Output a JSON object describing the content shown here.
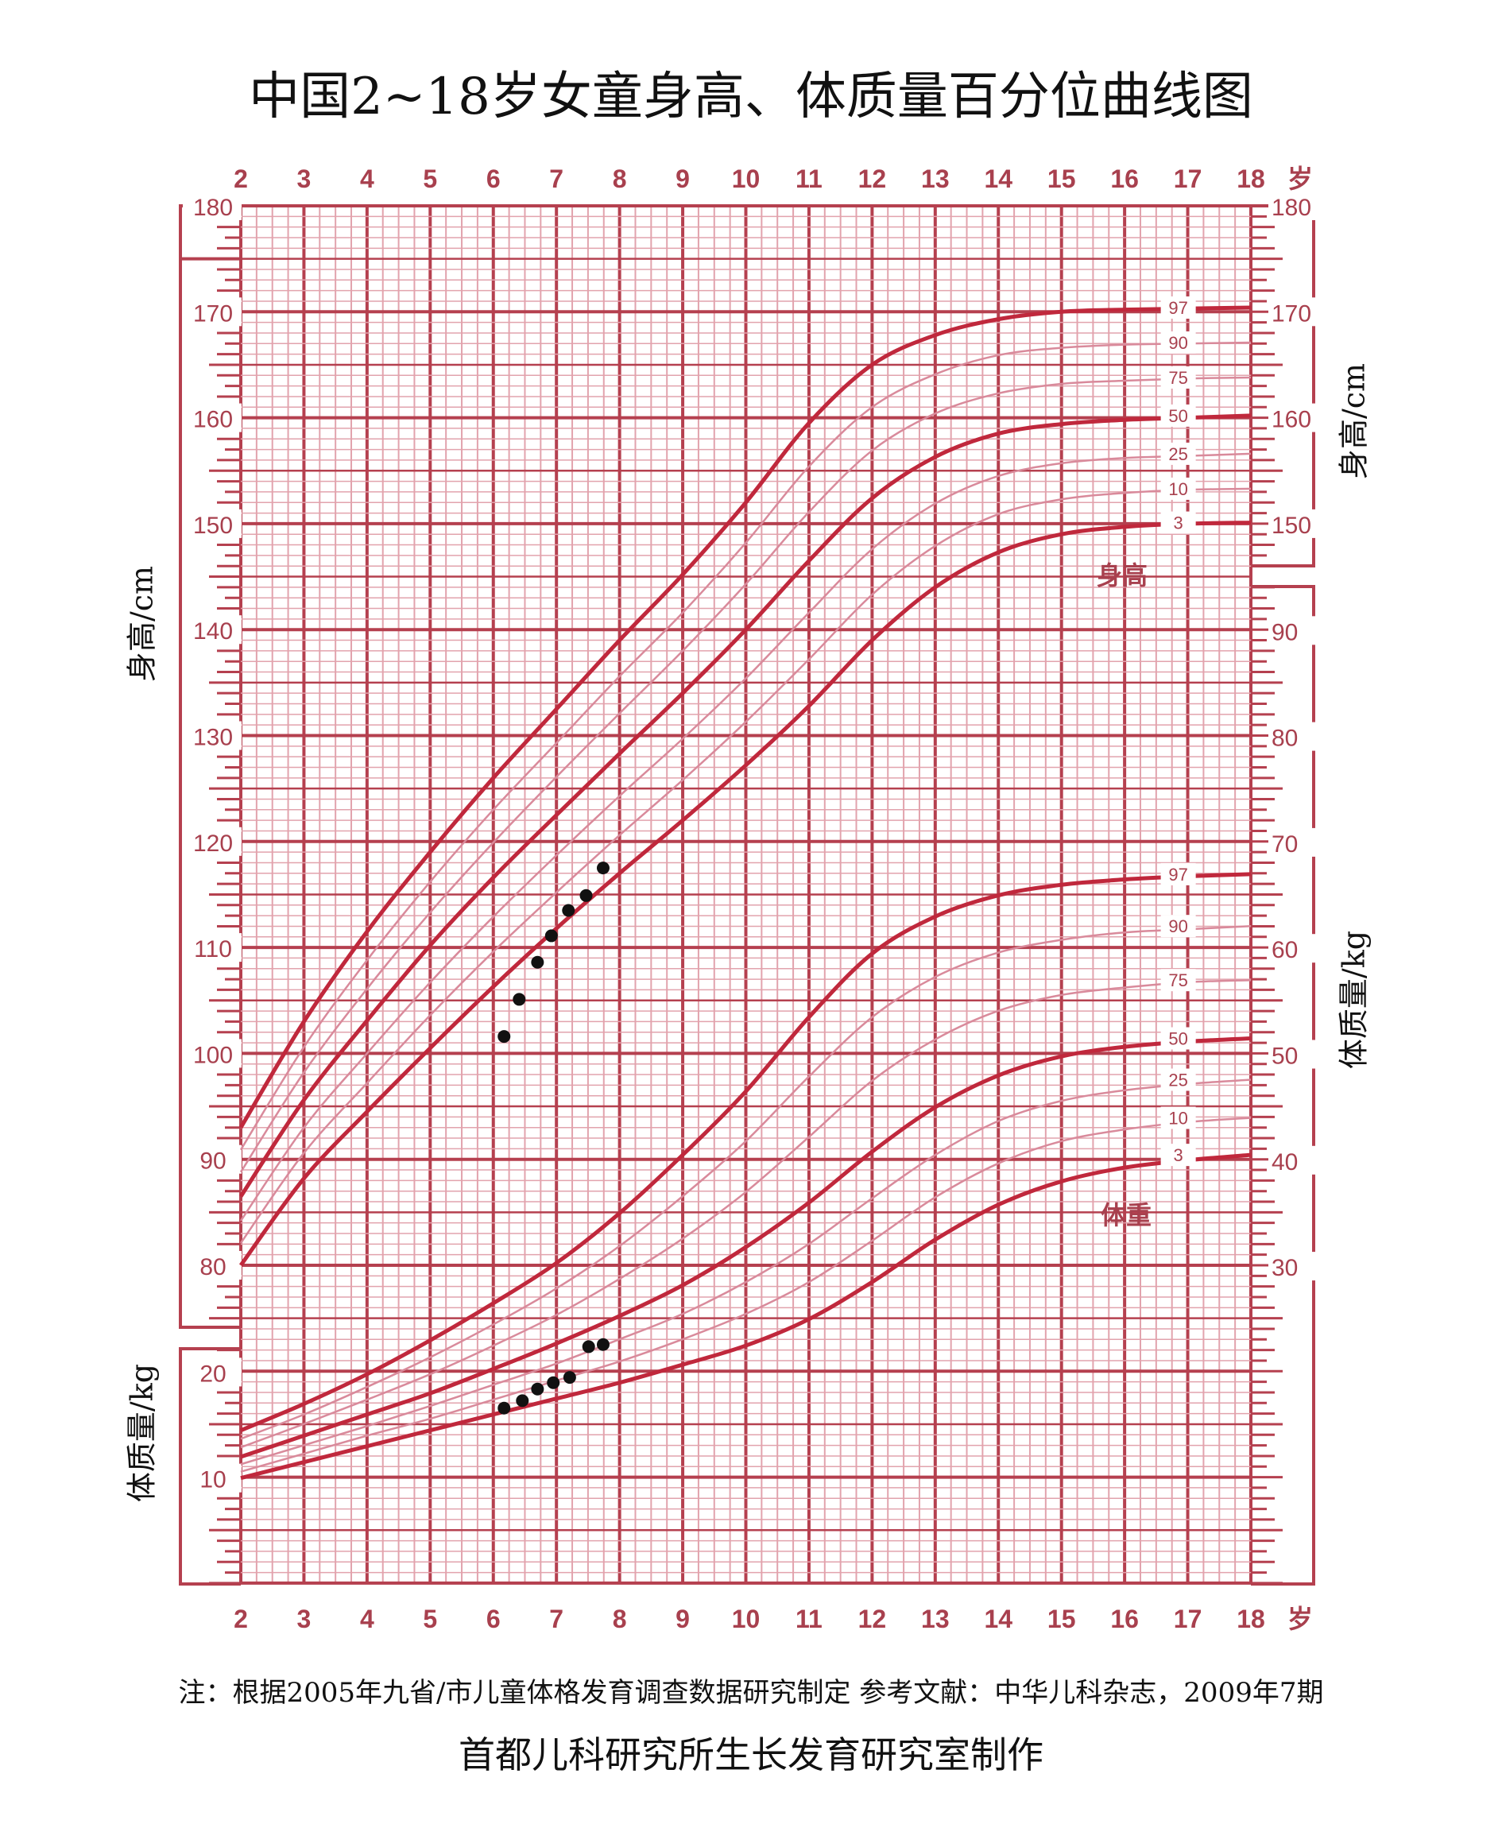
{
  "title": "中国2~18岁女童身高、体质量百分位曲线图",
  "footer_note": "注：根据2005年九省/市儿童体格发育调查数据研究制定  参考文献：中华儿科杂志，2009年7期",
  "footer_maker": "首都儿科研究所生长发育研究室制作",
  "axis_labels": {
    "height": "身高/cm",
    "weight": "体质量/kg",
    "age_unit": "岁"
  },
  "region_labels": {
    "height": "身高",
    "weight": "体重"
  },
  "colors": {
    "grid": "#b5404f",
    "minor": "#e2a3ad",
    "main_curve": "#c0283c",
    "other_curve": "#d98a9b",
    "points": "#111111"
  },
  "chart_data": {
    "type": "line",
    "title": "中国2~18岁女童身高、体质量百分位曲线图",
    "xlabel": "岁",
    "x": [
      2,
      3,
      4,
      5,
      6,
      7,
      8,
      9,
      10,
      11,
      12,
      13,
      14,
      15,
      16,
      17,
      18
    ],
    "xlim": [
      2,
      18
    ],
    "height_axis": {
      "label": "身高/cm",
      "left_ticks": [
        80,
        90,
        100,
        110,
        120,
        130,
        140,
        150,
        160,
        170,
        180
      ],
      "right_ticks": [
        150,
        160,
        170,
        180
      ],
      "ylim": [
        80,
        180
      ]
    },
    "weight_axis": {
      "label": "体质量/kg",
      "left_ticks": [
        10,
        20
      ],
      "right_ticks": [
        30,
        40,
        50,
        60,
        70,
        80,
        90
      ],
      "ylim": [
        0,
        90
      ]
    },
    "height_series": [
      {
        "name": "3",
        "values": [
          80,
          88.2,
          94.5,
          100.5,
          106.3,
          111.8,
          117,
          122,
          127.2,
          132.8,
          139,
          144,
          147.3,
          149,
          149.7,
          150,
          150.1
        ]
      },
      {
        "name": "10",
        "values": [
          82.1,
          90.6,
          97.2,
          103.6,
          109.6,
          115.2,
          120.6,
          125.8,
          131.3,
          137.2,
          143.3,
          147.9,
          150.9,
          152.3,
          152.9,
          153.2,
          153.3
        ]
      },
      {
        "name": "25",
        "values": [
          84.2,
          93.0,
          100.0,
          106.7,
          112.9,
          118.7,
          124.3,
          129.7,
          135.4,
          141.6,
          147.6,
          151.9,
          154.5,
          155.7,
          156.2,
          156.4,
          156.6
        ]
      },
      {
        "name": "50",
        "values": [
          86.5,
          95.6,
          103.1,
          110.2,
          116.6,
          122.5,
          128.3,
          134,
          140,
          146.5,
          152.4,
          156.3,
          158.5,
          159.4,
          159.8,
          160,
          160.2
        ]
      },
      {
        "name": "75",
        "values": [
          88.8,
          98.2,
          106.1,
          113.3,
          119.9,
          126.1,
          132.1,
          138.0,
          144.3,
          151.1,
          156.9,
          160.4,
          162.3,
          163.2,
          163.5,
          163.7,
          163.8
        ]
      },
      {
        "name": "90",
        "values": [
          90.9,
          100.6,
          108.8,
          116.2,
          123.0,
          129.3,
          135.6,
          141.6,
          148.2,
          155.4,
          161.0,
          164.1,
          165.9,
          166.6,
          166.9,
          167.0,
          167.1
        ]
      },
      {
        "name": "97",
        "values": [
          93,
          103,
          111.5,
          119,
          126,
          132.5,
          139,
          145.2,
          152,
          159.5,
          165,
          167.8,
          169.3,
          170,
          170.2,
          170.3,
          170.4
        ]
      }
    ],
    "weight_series": [
      {
        "name": "3",
        "values": [
          10,
          11.5,
          13,
          14.5,
          16,
          17.5,
          19,
          20.7,
          22.5,
          25,
          28.5,
          32.5,
          35.8,
          38,
          39.3,
          40,
          40.5
        ]
      },
      {
        "name": "10",
        "values": [
          10.6,
          12.3,
          14.0,
          15.6,
          17.4,
          19.2,
          21.0,
          23.1,
          25.5,
          28.5,
          32.4,
          36.5,
          39.7,
          41.8,
          42.9,
          43.6,
          44.0
        ]
      },
      {
        "name": "25",
        "values": [
          11.3,
          13.1,
          14.9,
          16.8,
          18.8,
          20.8,
          23.1,
          25.5,
          28.5,
          32.1,
          36.4,
          40.5,
          43.7,
          45.6,
          46.6,
          47.2,
          47.6
        ]
      },
      {
        "name": "50",
        "values": [
          12,
          14,
          16,
          18,
          20.3,
          22.7,
          25.3,
          28.2,
          31.8,
          36,
          40.8,
          45,
          48,
          49.8,
          50.7,
          51.2,
          51.5
        ]
      },
      {
        "name": "75",
        "values": [
          12.9,
          15.1,
          17.4,
          19.8,
          22.5,
          25.4,
          28.8,
          32.6,
          37.0,
          42.2,
          47.5,
          51.4,
          54.1,
          55.6,
          56.3,
          56.8,
          57.0
        ]
      },
      {
        "name": "90",
        "values": [
          13.7,
          16.0,
          18.6,
          21.4,
          24.5,
          27.9,
          31.9,
          36.6,
          41.8,
          47.9,
          53.5,
          57.3,
          59.6,
          60.8,
          61.5,
          61.8,
          62.1
        ]
      },
      {
        "name": "97",
        "values": [
          14.5,
          17,
          19.8,
          23,
          26.5,
          30.3,
          35,
          40.5,
          46.5,
          53.5,
          59.5,
          63,
          65,
          66,
          66.5,
          66.8,
          67
        ]
      }
    ],
    "height_points": [
      {
        "age": 6.17,
        "value": 101.6
      },
      {
        "age": 6.41,
        "value": 105.1
      },
      {
        "age": 6.7,
        "value": 108.6
      },
      {
        "age": 6.92,
        "value": 111.1
      },
      {
        "age": 7.19,
        "value": 113.5
      },
      {
        "age": 7.47,
        "value": 114.9
      },
      {
        "age": 7.74,
        "value": 117.5
      }
    ],
    "weight_points": [
      {
        "age": 6.17,
        "value": 16.6
      },
      {
        "age": 6.46,
        "value": 17.3
      },
      {
        "age": 6.7,
        "value": 18.4
      },
      {
        "age": 6.95,
        "value": 19.0
      },
      {
        "age": 7.21,
        "value": 19.5
      },
      {
        "age": 7.51,
        "value": 22.4
      },
      {
        "age": 7.74,
        "value": 22.6
      }
    ]
  }
}
